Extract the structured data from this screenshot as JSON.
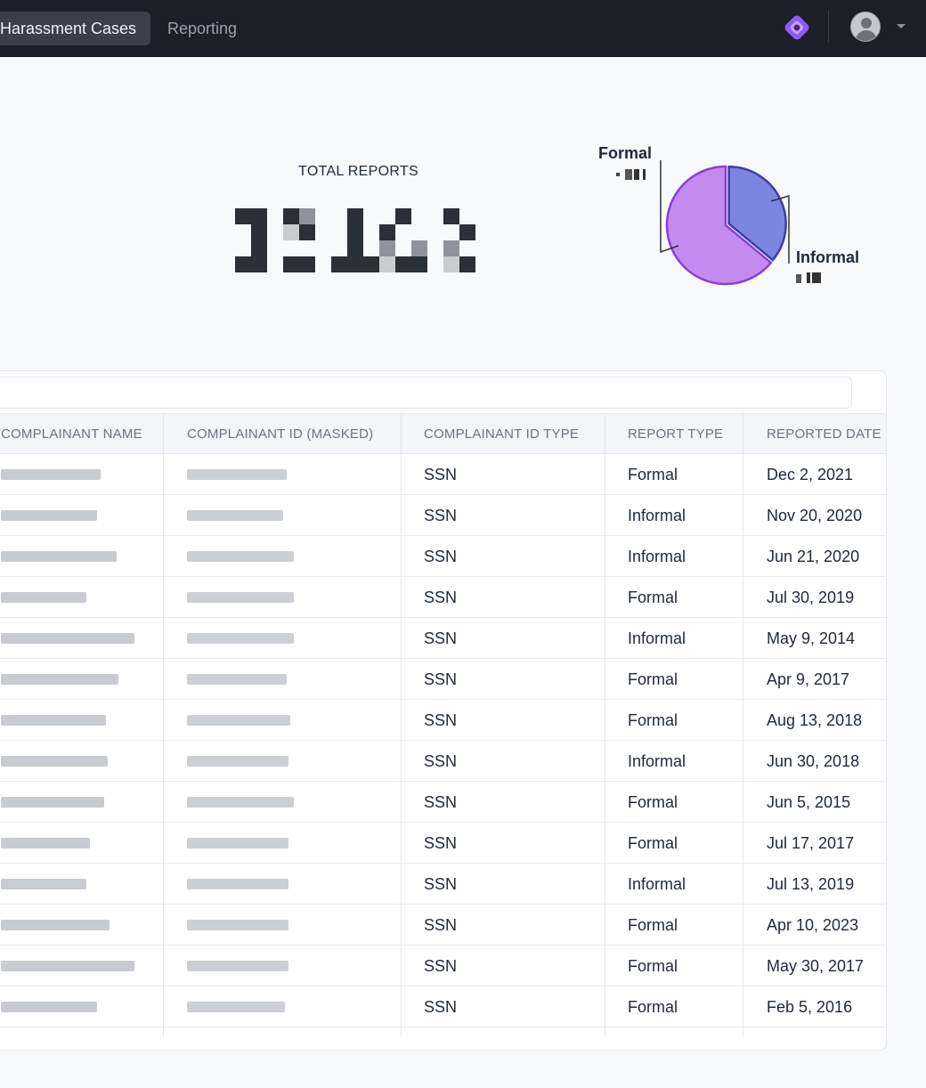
{
  "nav": {
    "tabs": [
      {
        "label": "Harassment Cases",
        "active": true
      },
      {
        "label": "Reporting",
        "active": false
      }
    ],
    "logo_icon": "app-logo-icon",
    "avatar_icon": "user-avatar-icon",
    "caret_icon": "chevron-down-icon"
  },
  "summary": {
    "total_label": "TOTAL REPORTS",
    "total_value_redacted": true
  },
  "pie": {
    "formal_label": "Formal",
    "informal_label": "Informal",
    "formal_color": "#c58af0",
    "informal_color": "#7b86e0",
    "formal_fraction": 0.64,
    "informal_fraction": 0.36
  },
  "table": {
    "columns": [
      "COMPLAINANT NAME",
      "COMPLAINANT ID (MASKED)",
      "COMPLAINANT ID TYPE",
      "REPORT TYPE",
      "REPORTED DATE"
    ],
    "rows": [
      {
        "id_type": "SSN",
        "report_type": "Formal",
        "date": "Dec 2, 2021"
      },
      {
        "id_type": "SSN",
        "report_type": "Informal",
        "date": "Nov 20, 2020"
      },
      {
        "id_type": "SSN",
        "report_type": "Informal",
        "date": "Jun 21, 2020"
      },
      {
        "id_type": "SSN",
        "report_type": "Formal",
        "date": "Jul 30, 2019"
      },
      {
        "id_type": "SSN",
        "report_type": "Informal",
        "date": "May 9, 2014"
      },
      {
        "id_type": "SSN",
        "report_type": "Formal",
        "date": "Apr 9, 2017"
      },
      {
        "id_type": "SSN",
        "report_type": "Formal",
        "date": "Aug 13, 2018"
      },
      {
        "id_type": "SSN",
        "report_type": "Informal",
        "date": "Jun 30, 2018"
      },
      {
        "id_type": "SSN",
        "report_type": "Formal",
        "date": "Jun 5, 2015"
      },
      {
        "id_type": "SSN",
        "report_type": "Formal",
        "date": "Jul 17, 2017"
      },
      {
        "id_type": "SSN",
        "report_type": "Informal",
        "date": "Jul 13, 2019"
      },
      {
        "id_type": "SSN",
        "report_type": "Formal",
        "date": "Apr 10, 2023"
      },
      {
        "id_type": "SSN",
        "report_type": "Formal",
        "date": "May 30, 2017"
      },
      {
        "id_type": "SSN",
        "report_type": "Formal",
        "date": "Feb 5, 2016"
      }
    ]
  }
}
